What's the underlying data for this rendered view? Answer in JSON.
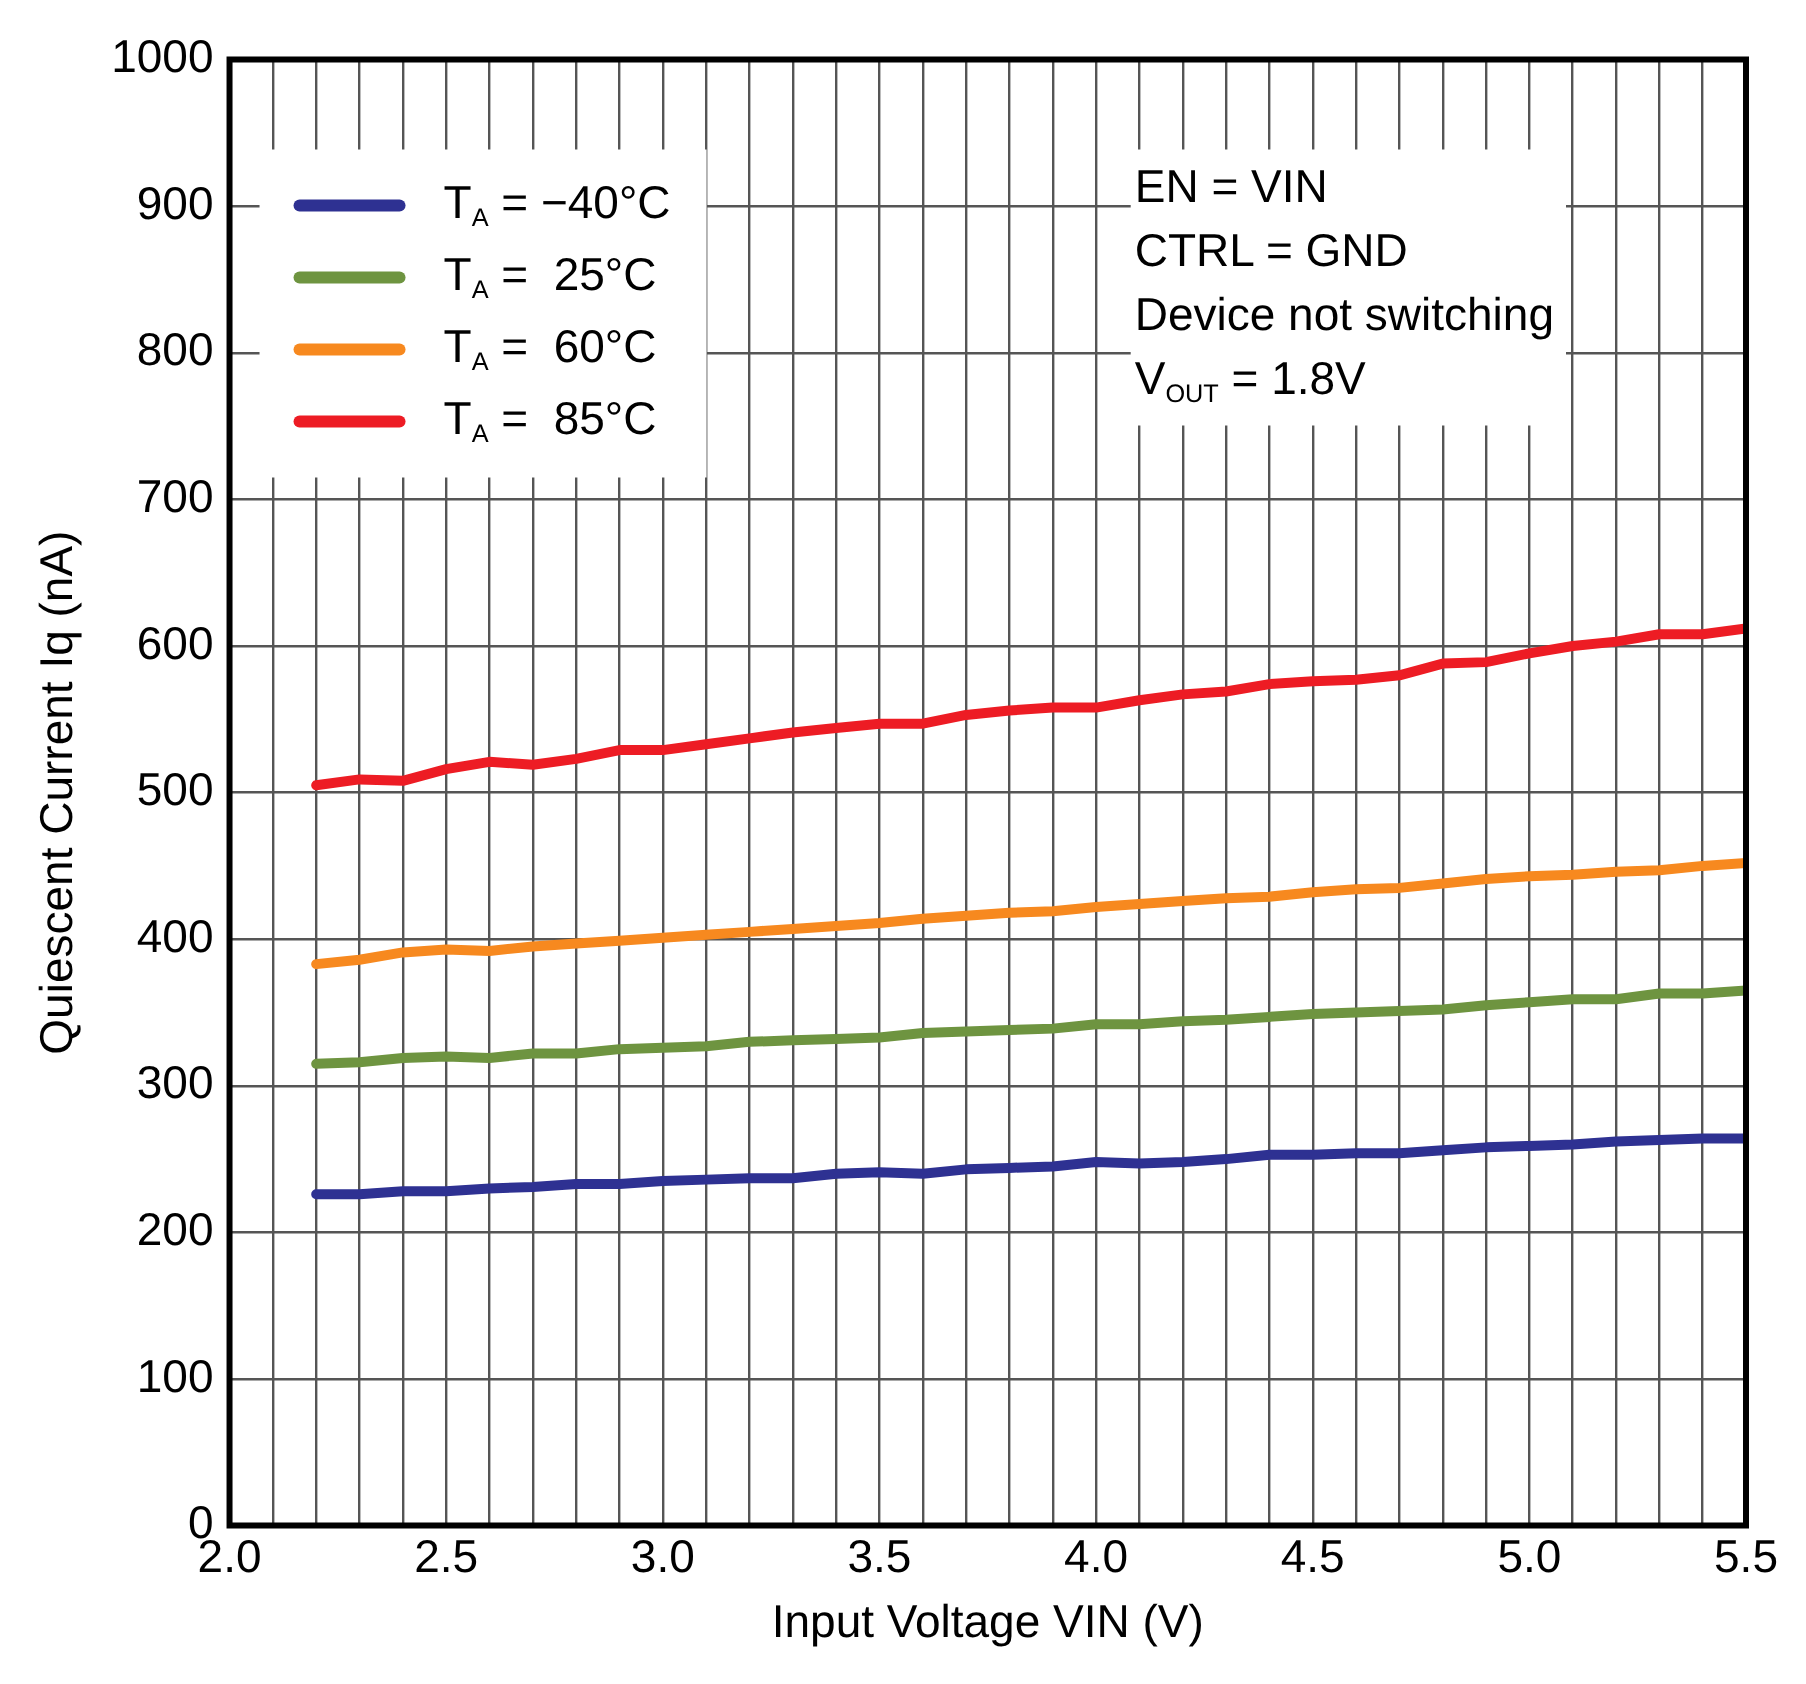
{
  "chart_data": {
    "type": "line",
    "xlabel": "Input Voltage VIN (V)",
    "ylabel": "Quiescent Current Iq (nA)",
    "x": [
      2.2,
      2.3,
      2.4,
      2.5,
      2.6,
      2.7,
      2.8,
      2.9,
      3.0,
      3.1,
      3.2,
      3.3,
      3.4,
      3.5,
      3.6,
      3.7,
      3.8,
      3.9,
      4.0,
      4.1,
      4.2,
      4.3,
      4.4,
      4.5,
      4.6,
      4.7,
      4.8,
      4.9,
      5.0,
      5.1,
      5.2,
      5.3,
      5.4,
      5.5
    ],
    "series": [
      {
        "name": "T$_{A}$ = −40°C",
        "color": "#2e3192",
        "values": [
          226,
          226,
          228,
          228,
          230,
          231,
          233,
          233,
          235,
          236,
          237,
          237,
          240,
          241,
          240,
          243,
          244,
          245,
          248,
          247,
          248,
          250,
          253,
          253,
          254,
          254,
          256,
          258,
          259,
          260,
          262,
          263,
          264,
          264
        ]
      },
      {
        "name": "T$_{A}$ =  25°C",
        "color": "#6e9440",
        "values": [
          315,
          316,
          319,
          320,
          319,
          322,
          322,
          325,
          326,
          327,
          330,
          331,
          332,
          333,
          336,
          337,
          338,
          339,
          342,
          342,
          344,
          345,
          347,
          349,
          350,
          351,
          352,
          355,
          357,
          359,
          359,
          363,
          363,
          365
        ]
      },
      {
        "name": "T$_{A}$ =  60°C",
        "color": "#f7891f",
        "values": [
          383,
          386,
          391,
          393,
          392,
          395,
          397,
          399,
          401,
          403,
          405,
          407,
          409,
          411,
          414,
          416,
          418,
          419,
          422,
          424,
          426,
          428,
          429,
          432,
          434,
          435,
          438,
          441,
          443,
          444,
          446,
          447,
          450,
          452
        ]
      },
      {
        "name": "T$_{A}$ =  85°C",
        "color": "#ed1c24",
        "values": [
          505,
          509,
          508,
          516,
          521,
          519,
          523,
          529,
          529,
          533,
          537,
          541,
          544,
          547,
          547,
          553,
          556,
          558,
          558,
          563,
          567,
          569,
          574,
          576,
          577,
          580,
          588,
          589,
          595,
          600,
          603,
          608,
          608,
          612
        ]
      }
    ],
    "xlim": [
      2.0,
      5.5
    ],
    "xticks": [
      {
        "value": 2,
        "label": "2.0"
      },
      {
        "value": 2.1,
        "label": null
      },
      {
        "value": 2.2,
        "label": null
      },
      {
        "value": 2.3,
        "label": null
      },
      {
        "value": 2.4,
        "label": null
      },
      2.5,
      {
        "value": 2.6,
        "label": null
      },
      {
        "value": 2.7,
        "label": null
      },
      {
        "value": 2.8,
        "label": null
      },
      {
        "value": 2.9,
        "label": null
      },
      {
        "value": 3,
        "label": "3.0"
      },
      {
        "value": 3.1,
        "label": null
      },
      {
        "value": 3.2,
        "label": null
      },
      {
        "value": 3.3,
        "label": null
      },
      {
        "value": 3.4,
        "label": null
      },
      3.5,
      {
        "value": 3.6,
        "label": null
      },
      {
        "value": 3.7,
        "label": null
      },
      {
        "value": 3.8,
        "label": null
      },
      {
        "value": 3.9,
        "label": null
      },
      {
        "value": 4,
        "label": "4.0"
      },
      {
        "value": 4.1,
        "label": null
      },
      {
        "value": 4.2,
        "label": null
      },
      {
        "value": 4.3,
        "label": null
      },
      {
        "value": 4.4,
        "label": null
      },
      4.5,
      {
        "value": 4.6,
        "label": null
      },
      {
        "value": 4.7,
        "label": null
      },
      {
        "value": 4.8,
        "label": null
      },
      {
        "value": 4.9,
        "label": null
      },
      {
        "value": 5,
        "label": "5.0"
      },
      {
        "value": 5.1,
        "label": null
      },
      {
        "value": 5.2,
        "label": null
      },
      {
        "value": 5.3,
        "label": null
      },
      {
        "value": 5.4,
        "label": null
      },
      5.5
    ],
    "ylim": [
      0,
      1000
    ],
    "yticks": [
      0,
      100,
      200,
      300,
      400,
      500,
      600,
      700,
      800,
      900,
      1000
    ],
    "grid": true,
    "legend": "top left",
    "marker": "none",
    "line_style": "solid",
    "annotations": [
      "EN = VIN",
      "CTRL = GND",
      "Device not switching",
      "V$_{OUT}$ = 1.8V"
    ]
  }
}
